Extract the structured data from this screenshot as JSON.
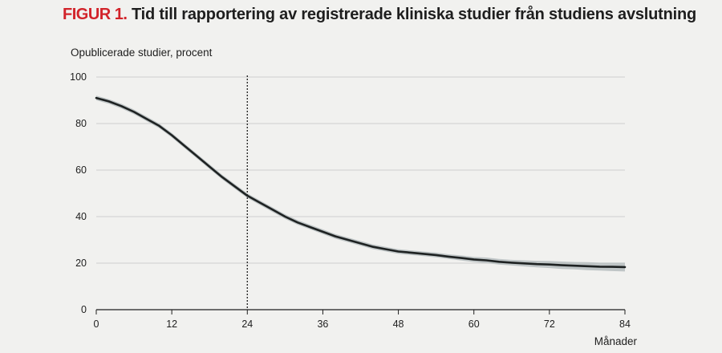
{
  "header": {
    "figure_label": "FIGUR 1.",
    "title": "Tid till rapportering av registrerade kliniska studier från studiens avslutning"
  },
  "colors": {
    "background": "#f1f1ef",
    "accent": "#d2232a",
    "line": "#1e2222",
    "confidence_band": "#b9c0c1",
    "grid": "#cfcfcf"
  },
  "chart_data": {
    "type": "line",
    "title": "Tid till rapportering av registrerade kliniska studier från studiens avslutning",
    "xlabel": "Månader",
    "ylabel": "Opublicerade studier, procent",
    "xlim": [
      0,
      84
    ],
    "ylim": [
      0,
      100
    ],
    "x_ticks": [
      0,
      12,
      24,
      36,
      48,
      60,
      72,
      84
    ],
    "y_ticks": [
      0,
      20,
      40,
      60,
      80,
      100
    ],
    "grid": "horizontal",
    "reference_line": {
      "x": 24,
      "style": "dotted"
    },
    "series": [
      {
        "x": [
          0,
          2,
          4,
          6,
          8,
          10,
          12,
          14,
          16,
          18,
          20,
          22,
          24,
          26,
          28,
          30,
          32,
          34,
          36,
          38,
          40,
          42,
          44,
          46,
          48,
          50,
          52,
          54,
          56,
          58,
          60,
          62,
          64,
          66,
          68,
          70,
          72,
          74,
          76,
          78,
          80,
          82,
          84
        ],
        "y": [
          91,
          89.5,
          87.5,
          85,
          82,
          79,
          75,
          70.5,
          66,
          61.5,
          57,
          53,
          49,
          46,
          43,
          40,
          37.5,
          35.5,
          33.5,
          31.5,
          30,
          28.5,
          27,
          26,
          25,
          24.5,
          24,
          23.5,
          22.8,
          22.2,
          21.6,
          21.2,
          20.6,
          20.2,
          19.9,
          19.6,
          19.4,
          19.1,
          18.9,
          18.7,
          18.5,
          18.4,
          18.3
        ],
        "ci_lower": [
          90,
          88.5,
          86.5,
          84,
          81,
          78,
          74,
          69.5,
          65,
          60.5,
          56,
          52,
          48,
          45,
          42,
          39,
          36.5,
          34.5,
          32.5,
          30.5,
          29,
          27.5,
          26,
          25,
          24,
          23.5,
          23,
          22.5,
          21.8,
          21.1,
          20.5,
          20,
          19.4,
          19,
          18.6,
          18.2,
          17.9,
          17.5,
          17.3,
          17,
          16.8,
          16.6,
          16.4
        ],
        "ci_upper": [
          92,
          90.5,
          88.5,
          86,
          83,
          80,
          76,
          71.5,
          67,
          62.5,
          58,
          54,
          50,
          47,
          44,
          41,
          38.5,
          36.5,
          34.5,
          32.5,
          31,
          29.5,
          28,
          27,
          26,
          25.5,
          25,
          24.5,
          23.8,
          23.3,
          22.7,
          22.4,
          21.8,
          21.4,
          21.2,
          21,
          20.9,
          20.7,
          20.5,
          20.4,
          20.2,
          20.2,
          20.2
        ]
      }
    ]
  }
}
